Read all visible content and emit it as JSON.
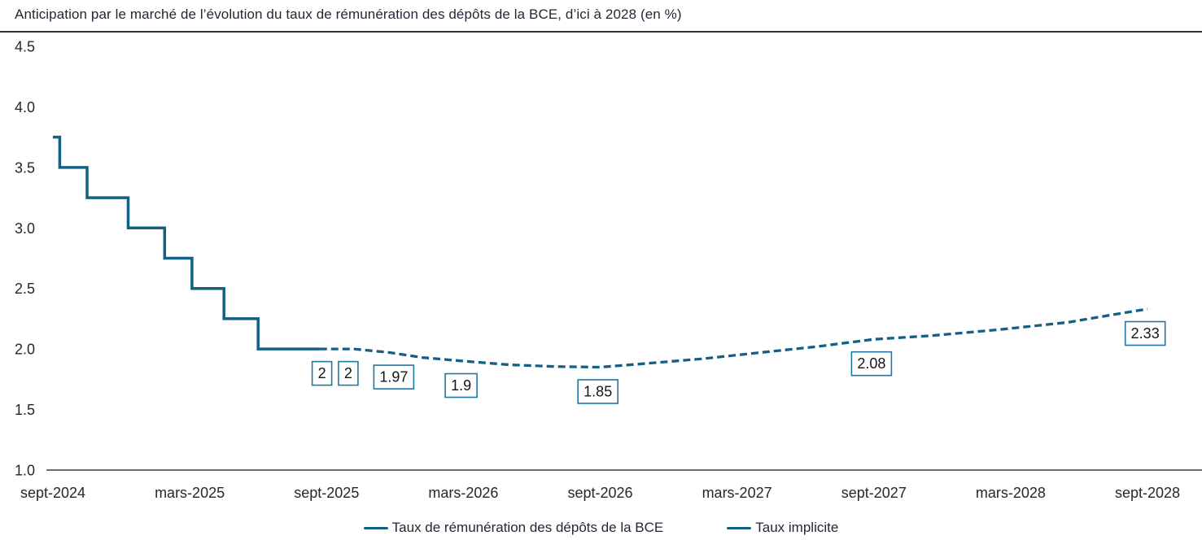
{
  "colors": {
    "line": "#156082",
    "label_box_border": "#2076a5",
    "title_text": "#1f2633",
    "axis_text": "#24272e",
    "axis_line": "#3a3f48",
    "title_rule": "#2b3140"
  },
  "chart_data": {
    "type": "line",
    "title": "Anticipation par le marché de l’évolution du taux de rémunération des dépôts de la BCE, d’ici à 2028 (en %)",
    "xlabel": "",
    "ylabel": "",
    "ylim": [
      1.0,
      4.5
    ],
    "x_range_months": [
      0,
      48
    ],
    "grid": false,
    "legend_position": "bottom",
    "y_ticks": [
      "4.5",
      "4.0",
      "3.5",
      "3.0",
      "2.5",
      "2.0",
      "1.5",
      "1.0"
    ],
    "x_ticks": [
      {
        "label": "sept-2024",
        "month": 0
      },
      {
        "label": "mars-2025",
        "month": 6
      },
      {
        "label": "sept-2025",
        "month": 12
      },
      {
        "label": "mars-2026",
        "month": 18
      },
      {
        "label": "sept-2026",
        "month": 24
      },
      {
        "label": "mars-2027",
        "month": 30
      },
      {
        "label": "sept-2027",
        "month": 36
      },
      {
        "label": "mars-2028",
        "month": 42
      },
      {
        "label": "sept-2028",
        "month": 48
      }
    ],
    "series": [
      {
        "name": "Taux de rémunération des dépôts de la BCE",
        "type": "step",
        "line_style": "solid",
        "points": [
          [
            0,
            3.75
          ],
          [
            0.3,
            3.75
          ],
          [
            0.3,
            3.5
          ],
          [
            1.5,
            3.5
          ],
          [
            1.5,
            3.25
          ],
          [
            3.3,
            3.25
          ],
          [
            3.3,
            3.0
          ],
          [
            4.9,
            3.0
          ],
          [
            4.9,
            2.75
          ],
          [
            6.1,
            2.75
          ],
          [
            6.1,
            2.5
          ],
          [
            7.5,
            2.5
          ],
          [
            7.5,
            2.25
          ],
          [
            9.0,
            2.25
          ],
          [
            9.0,
            2.0
          ],
          [
            11.7,
            2.0
          ]
        ]
      },
      {
        "name": "Taux implicite",
        "type": "line",
        "line_style": "dashed",
        "points": [
          [
            11.7,
            2.0
          ],
          [
            13.2,
            2.0
          ],
          [
            14.8,
            1.97
          ],
          [
            16.2,
            1.93
          ],
          [
            18,
            1.9
          ],
          [
            20,
            1.87
          ],
          [
            22,
            1.855
          ],
          [
            24,
            1.85
          ],
          [
            26,
            1.88
          ],
          [
            28.5,
            1.92
          ],
          [
            31,
            1.97
          ],
          [
            33.5,
            2.02
          ],
          [
            36,
            2.08
          ],
          [
            38.5,
            2.11
          ],
          [
            41.5,
            2.16
          ],
          [
            44.5,
            2.22
          ],
          [
            47,
            2.3
          ],
          [
            48,
            2.33
          ]
        ]
      }
    ],
    "point_labels": [
      {
        "text": "2",
        "month": 11.8,
        "value": 2.0
      },
      {
        "text": "2",
        "month": 12.95,
        "value": 2.0
      },
      {
        "text": "1.97",
        "month": 14.95,
        "value": 1.97
      },
      {
        "text": "1.9",
        "month": 17.9,
        "value": 1.9
      },
      {
        "text": "1.85",
        "month": 23.9,
        "value": 1.85
      },
      {
        "text": "2.08",
        "month": 35.9,
        "value": 2.08
      },
      {
        "text": "2.33",
        "month": 47.9,
        "value": 2.33
      }
    ]
  }
}
